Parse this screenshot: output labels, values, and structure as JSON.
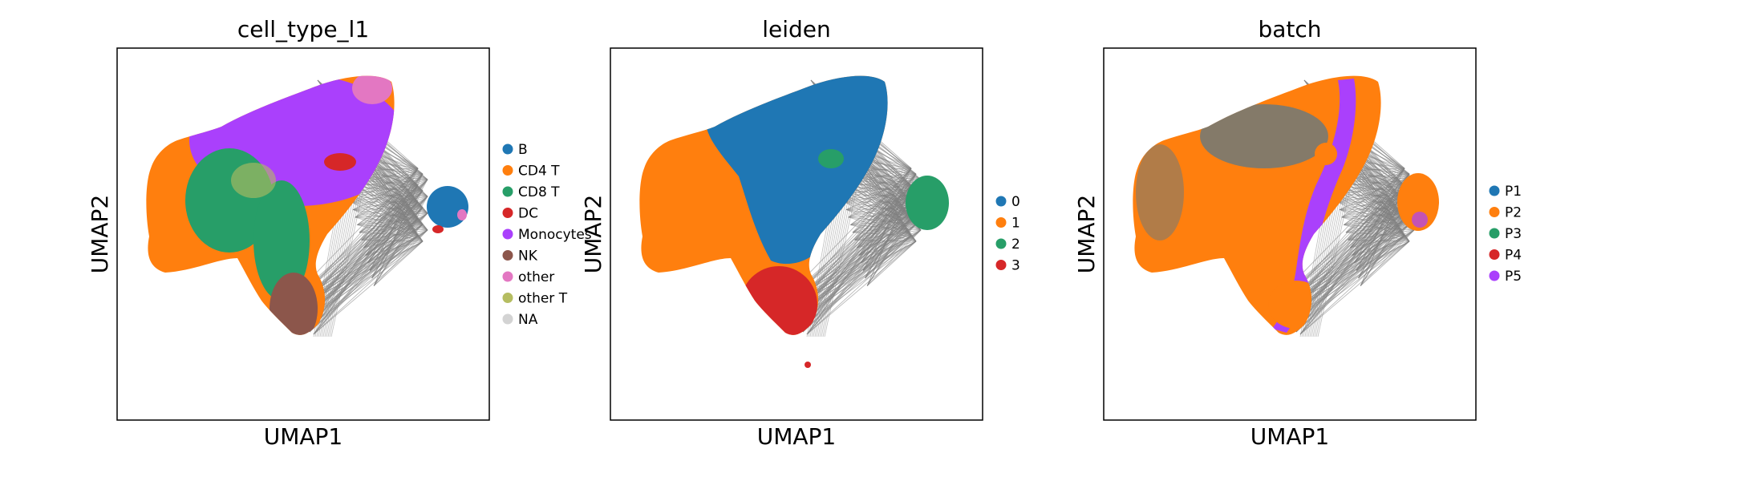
{
  "chart_data": [
    {
      "type": "scatter",
      "subtype": "umap-embedding-with-graph-edges",
      "title": "cell_type_l1",
      "xlabel": "UMAP1",
      "ylabel": "UMAP2",
      "grid": false,
      "ticks": false,
      "legend_position": "right",
      "edge_color": "#808080",
      "legend": [
        {
          "label": "B",
          "color": "#1f77b4"
        },
        {
          "label": "CD4 T",
          "color": "#ff7f0e"
        },
        {
          "label": "CD8 T",
          "color": "#279e68"
        },
        {
          "label": "DC",
          "color": "#d62728"
        },
        {
          "label": "Monocytes",
          "color": "#aa40fc"
        },
        {
          "label": "NK",
          "color": "#8c564b"
        },
        {
          "label": "other",
          "color": "#e377c2"
        },
        {
          "label": "other T",
          "color": "#b5bd61"
        },
        {
          "label": "NA",
          "color": "#d3d3d3"
        }
      ]
    },
    {
      "type": "scatter",
      "subtype": "umap-embedding-with-graph-edges",
      "title": "leiden",
      "xlabel": "UMAP1",
      "ylabel": "UMAP2",
      "grid": false,
      "ticks": false,
      "legend_position": "right",
      "edge_color": "#808080",
      "legend": [
        {
          "label": "0",
          "color": "#1f77b4"
        },
        {
          "label": "1",
          "color": "#ff7f0e"
        },
        {
          "label": "2",
          "color": "#279e68"
        },
        {
          "label": "3",
          "color": "#d62728"
        }
      ]
    },
    {
      "type": "scatter",
      "subtype": "umap-embedding-with-graph-edges",
      "title": "batch",
      "xlabel": "UMAP1",
      "ylabel": "UMAP2",
      "grid": false,
      "ticks": false,
      "legend_position": "right",
      "edge_color": "#808080",
      "legend": [
        {
          "label": "P1",
          "color": "#1f77b4"
        },
        {
          "label": "P2",
          "color": "#ff7f0e"
        },
        {
          "label": "P3",
          "color": "#279e68"
        },
        {
          "label": "P4",
          "color": "#d62728"
        },
        {
          "label": "P5",
          "color": "#aa40fc"
        }
      ]
    }
  ]
}
